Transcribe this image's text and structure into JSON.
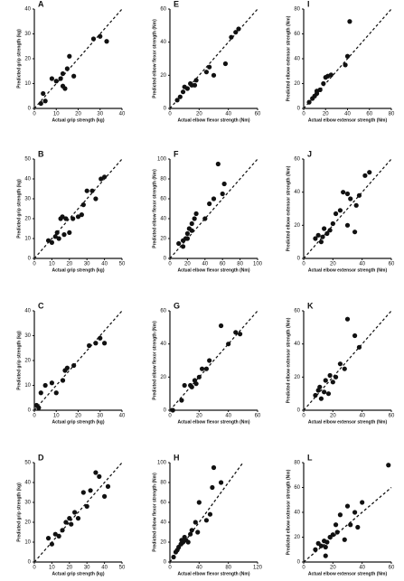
{
  "chart_data": [
    {
      "type": "scatter",
      "title": "A",
      "x_label": "Actual grip strength (kg)",
      "y_label": "Predicted grip strength (kg)",
      "color": "#111111",
      "x": [
        3,
        4,
        5,
        8,
        10,
        12,
        13,
        13,
        14,
        15,
        16,
        18,
        27,
        30,
        33
      ],
      "values": [
        2,
        6,
        3,
        12,
        11,
        12,
        9,
        14,
        8,
        16,
        21,
        13,
        28,
        29,
        27
      ],
      "xlim": [
        0,
        40
      ],
      "ylim": [
        0,
        40
      ],
      "xticks": [
        0,
        10,
        20,
        30,
        40
      ],
      "yticks": [
        0,
        10,
        20,
        30,
        40
      ]
    },
    {
      "type": "scatter",
      "title": "E",
      "x_label": "Actual elbow flexor strength (Nm)",
      "y_label": "Predicted elbow flexor strength (Nm)",
      "color": "#111111",
      "x": [
        5,
        7,
        9,
        10,
        12,
        14,
        15,
        17,
        18,
        25,
        27,
        30,
        38,
        42,
        45,
        47
      ],
      "values": [
        5,
        7,
        10,
        13,
        12,
        15,
        14,
        14,
        17,
        22,
        25,
        20,
        27,
        43,
        46,
        48
      ],
      "xlim": [
        0,
        60
      ],
      "ylim": [
        0,
        60
      ],
      "xticks": [
        0,
        20,
        40,
        60
      ],
      "yticks": [
        0,
        20,
        40,
        60
      ]
    },
    {
      "type": "scatter",
      "title": "I",
      "x_label": "Actual elbow extensor strength (Nm)",
      "y_label": "Predicted elbow extensor strength (Nm)",
      "color": "#111111",
      "x": [
        5,
        8,
        10,
        12,
        12,
        15,
        18,
        20,
        22,
        25,
        38,
        40,
        42
      ],
      "values": [
        5,
        8,
        10,
        12,
        14,
        15,
        20,
        25,
        26,
        27,
        35,
        42,
        70
      ],
      "xlim": [
        0,
        80
      ],
      "ylim": [
        0,
        80
      ],
      "xticks": [
        0,
        20,
        40,
        60,
        80
      ],
      "yticks": [
        0,
        20,
        40,
        60,
        80
      ]
    },
    {
      "type": "scatter",
      "title": "B",
      "x_label": "Actual grip strength (kg)",
      "y_label": "Predicted grip strength (kg)",
      "color": "#111111",
      "x": [
        8,
        10,
        12,
        13,
        14,
        15,
        16,
        17,
        18,
        20,
        22,
        25,
        27,
        28,
        30,
        33,
        35,
        38,
        40
      ],
      "values": [
        9,
        8,
        11,
        13,
        10,
        20,
        21,
        12,
        20,
        13,
        20,
        21,
        22,
        27,
        34,
        34,
        30,
        40,
        41
      ],
      "xlim": [
        0,
        50
      ],
      "ylim": [
        0,
        50
      ],
      "xticks": [
        0,
        10,
        20,
        30,
        40,
        50
      ],
      "yticks": [
        0,
        10,
        20,
        30,
        40,
        50
      ]
    },
    {
      "type": "scatter",
      "title": "F",
      "x_label": "Actual elbow flexor strength (Nm)",
      "y_label": "Predicted elbow flexor strength (Nm)",
      "color": "#111111",
      "x": [
        10,
        15,
        15,
        18,
        20,
        20,
        22,
        25,
        25,
        28,
        30,
        40,
        45,
        50,
        55,
        60,
        62
      ],
      "values": [
        15,
        18,
        12,
        20,
        25,
        20,
        30,
        35,
        28,
        40,
        45,
        40,
        55,
        60,
        95,
        65,
        75
      ],
      "xlim": [
        0,
        100
      ],
      "ylim": [
        0,
        100
      ],
      "xticks": [
        0,
        20,
        40,
        60,
        80,
        100
      ],
      "yticks": [
        0,
        20,
        40,
        60,
        80,
        100
      ]
    },
    {
      "type": "scatter",
      "title": "J",
      "x_label": "Actual elbow extensor strength (Nm)",
      "y_label": "Predicted elbow extensor strength (Nm)",
      "color": "#111111",
      "x": [
        8,
        10,
        12,
        13,
        14,
        16,
        18,
        20,
        22,
        25,
        27,
        30,
        30,
        32,
        35,
        36,
        38,
        42,
        45
      ],
      "values": [
        12,
        14,
        10,
        13,
        18,
        15,
        17,
        21,
        27,
        29,
        40,
        20,
        39,
        36,
        16,
        32,
        38,
        50,
        52
      ],
      "xlim": [
        0,
        60
      ],
      "ylim": [
        0,
        60
      ],
      "xticks": [
        0,
        20,
        40,
        60
      ],
      "yticks": [
        0,
        20,
        40,
        60
      ]
    },
    {
      "type": "scatter",
      "title": "C",
      "x_label": "Actual grip strength (kg)",
      "y_label": "Predicted grip strength (kg)",
      "color": "#111111",
      "x": [
        1,
        2,
        3,
        5,
        8,
        10,
        13,
        14,
        15,
        18,
        25,
        28,
        30,
        32
      ],
      "values": [
        2,
        1,
        7,
        10,
        11,
        7,
        12,
        16,
        17,
        18,
        26,
        27,
        29,
        27
      ],
      "xlim": [
        0,
        40
      ],
      "ylim": [
        0,
        40
      ],
      "xticks": [
        0,
        10,
        20,
        30,
        40
      ],
      "yticks": [
        0,
        10,
        20,
        30,
        40
      ]
    },
    {
      "type": "scatter",
      "title": "G",
      "x_label": "Actual elbow flexor strength (Nm)",
      "y_label": "Predicted elbow flexor strength (Nm)",
      "color": "#111111",
      "x": [
        2,
        8,
        10,
        14,
        15,
        17,
        18,
        20,
        22,
        25,
        27,
        35,
        40,
        45,
        48
      ],
      "values": [
        0,
        6,
        15,
        15,
        14,
        18,
        16,
        20,
        25,
        25,
        30,
        51,
        40,
        47,
        46
      ],
      "xlim": [
        0,
        60
      ],
      "ylim": [
        0,
        60
      ],
      "xticks": [
        0,
        20,
        40,
        60
      ],
      "yticks": [
        0,
        20,
        40,
        60
      ]
    },
    {
      "type": "scatter",
      "title": "K",
      "x_label": "Actual elbow extensor strength (Nm)",
      "y_label": "Predicted elbow extensor strength (Nm)",
      "color": "#111111",
      "x": [
        8,
        10,
        11,
        12,
        14,
        15,
        17,
        18,
        20,
        22,
        25,
        28,
        30,
        35,
        38
      ],
      "values": [
        9,
        12,
        14,
        7,
        11,
        18,
        10,
        21,
        17,
        20,
        28,
        25,
        55,
        45,
        38
      ],
      "xlim": [
        0,
        60
      ],
      "ylim": [
        0,
        60
      ],
      "xticks": [
        0,
        20,
        40,
        60
      ],
      "yticks": [
        0,
        20,
        40,
        60
      ]
    },
    {
      "type": "scatter",
      "title": "D",
      "x_label": "Actual grip strength (kg)",
      "y_label": "Predicted grip strength (kg)",
      "color": "#111111",
      "x": [
        8,
        10,
        12,
        14,
        16,
        18,
        20,
        21,
        23,
        25,
        28,
        30,
        32,
        35,
        37,
        40,
        42
      ],
      "values": [
        12,
        9,
        14,
        13,
        16,
        20,
        22,
        19,
        25,
        22,
        35,
        28,
        36,
        45,
        43,
        33,
        38
      ],
      "xlim": [
        0,
        50
      ],
      "ylim": [
        0,
        50
      ],
      "xticks": [
        0,
        10,
        20,
        30,
        40,
        50
      ],
      "yticks": [
        0,
        10,
        20,
        30,
        40,
        50
      ]
    },
    {
      "type": "scatter",
      "title": "H",
      "x_label": "Actual elbow flexor strength (Nm)",
      "y_label": "Predicted elbow flexor strength (Nm)",
      "color": "#111111",
      "x": [
        5,
        8,
        10,
        12,
        15,
        16,
        18,
        20,
        22,
        25,
        28,
        30,
        35,
        38,
        40,
        50,
        55,
        58,
        60,
        70
      ],
      "values": [
        5,
        10,
        12,
        15,
        18,
        22,
        20,
        25,
        22,
        20,
        28,
        32,
        40,
        30,
        60,
        42,
        48,
        75,
        95,
        80
      ],
      "xlim": [
        0,
        120
      ],
      "ylim": [
        0,
        100
      ],
      "xticks": [
        0,
        40,
        80,
        120
      ],
      "yticks": [
        0,
        20,
        40,
        60,
        80,
        100
      ]
    },
    {
      "type": "scatter",
      "title": "L",
      "x_label": "Actual elbow extensor strength (Nm)",
      "y_label": "Predicted elbow extensor strength (Nm)",
      "color": "#111111",
      "x": [
        8,
        10,
        12,
        14,
        15,
        15,
        16,
        18,
        20,
        22,
        23,
        25,
        28,
        30,
        32,
        35,
        37,
        40,
        58
      ],
      "values": [
        10,
        15,
        13,
        17,
        12,
        5,
        16,
        20,
        22,
        30,
        24,
        38,
        18,
        45,
        30,
        40,
        28,
        48,
        78
      ],
      "xlim": [
        0,
        60
      ],
      "ylim": [
        0,
        80
      ],
      "xticks": [
        0,
        20,
        40,
        60
      ],
      "yticks": [
        0,
        20,
        40,
        60,
        80
      ]
    }
  ]
}
